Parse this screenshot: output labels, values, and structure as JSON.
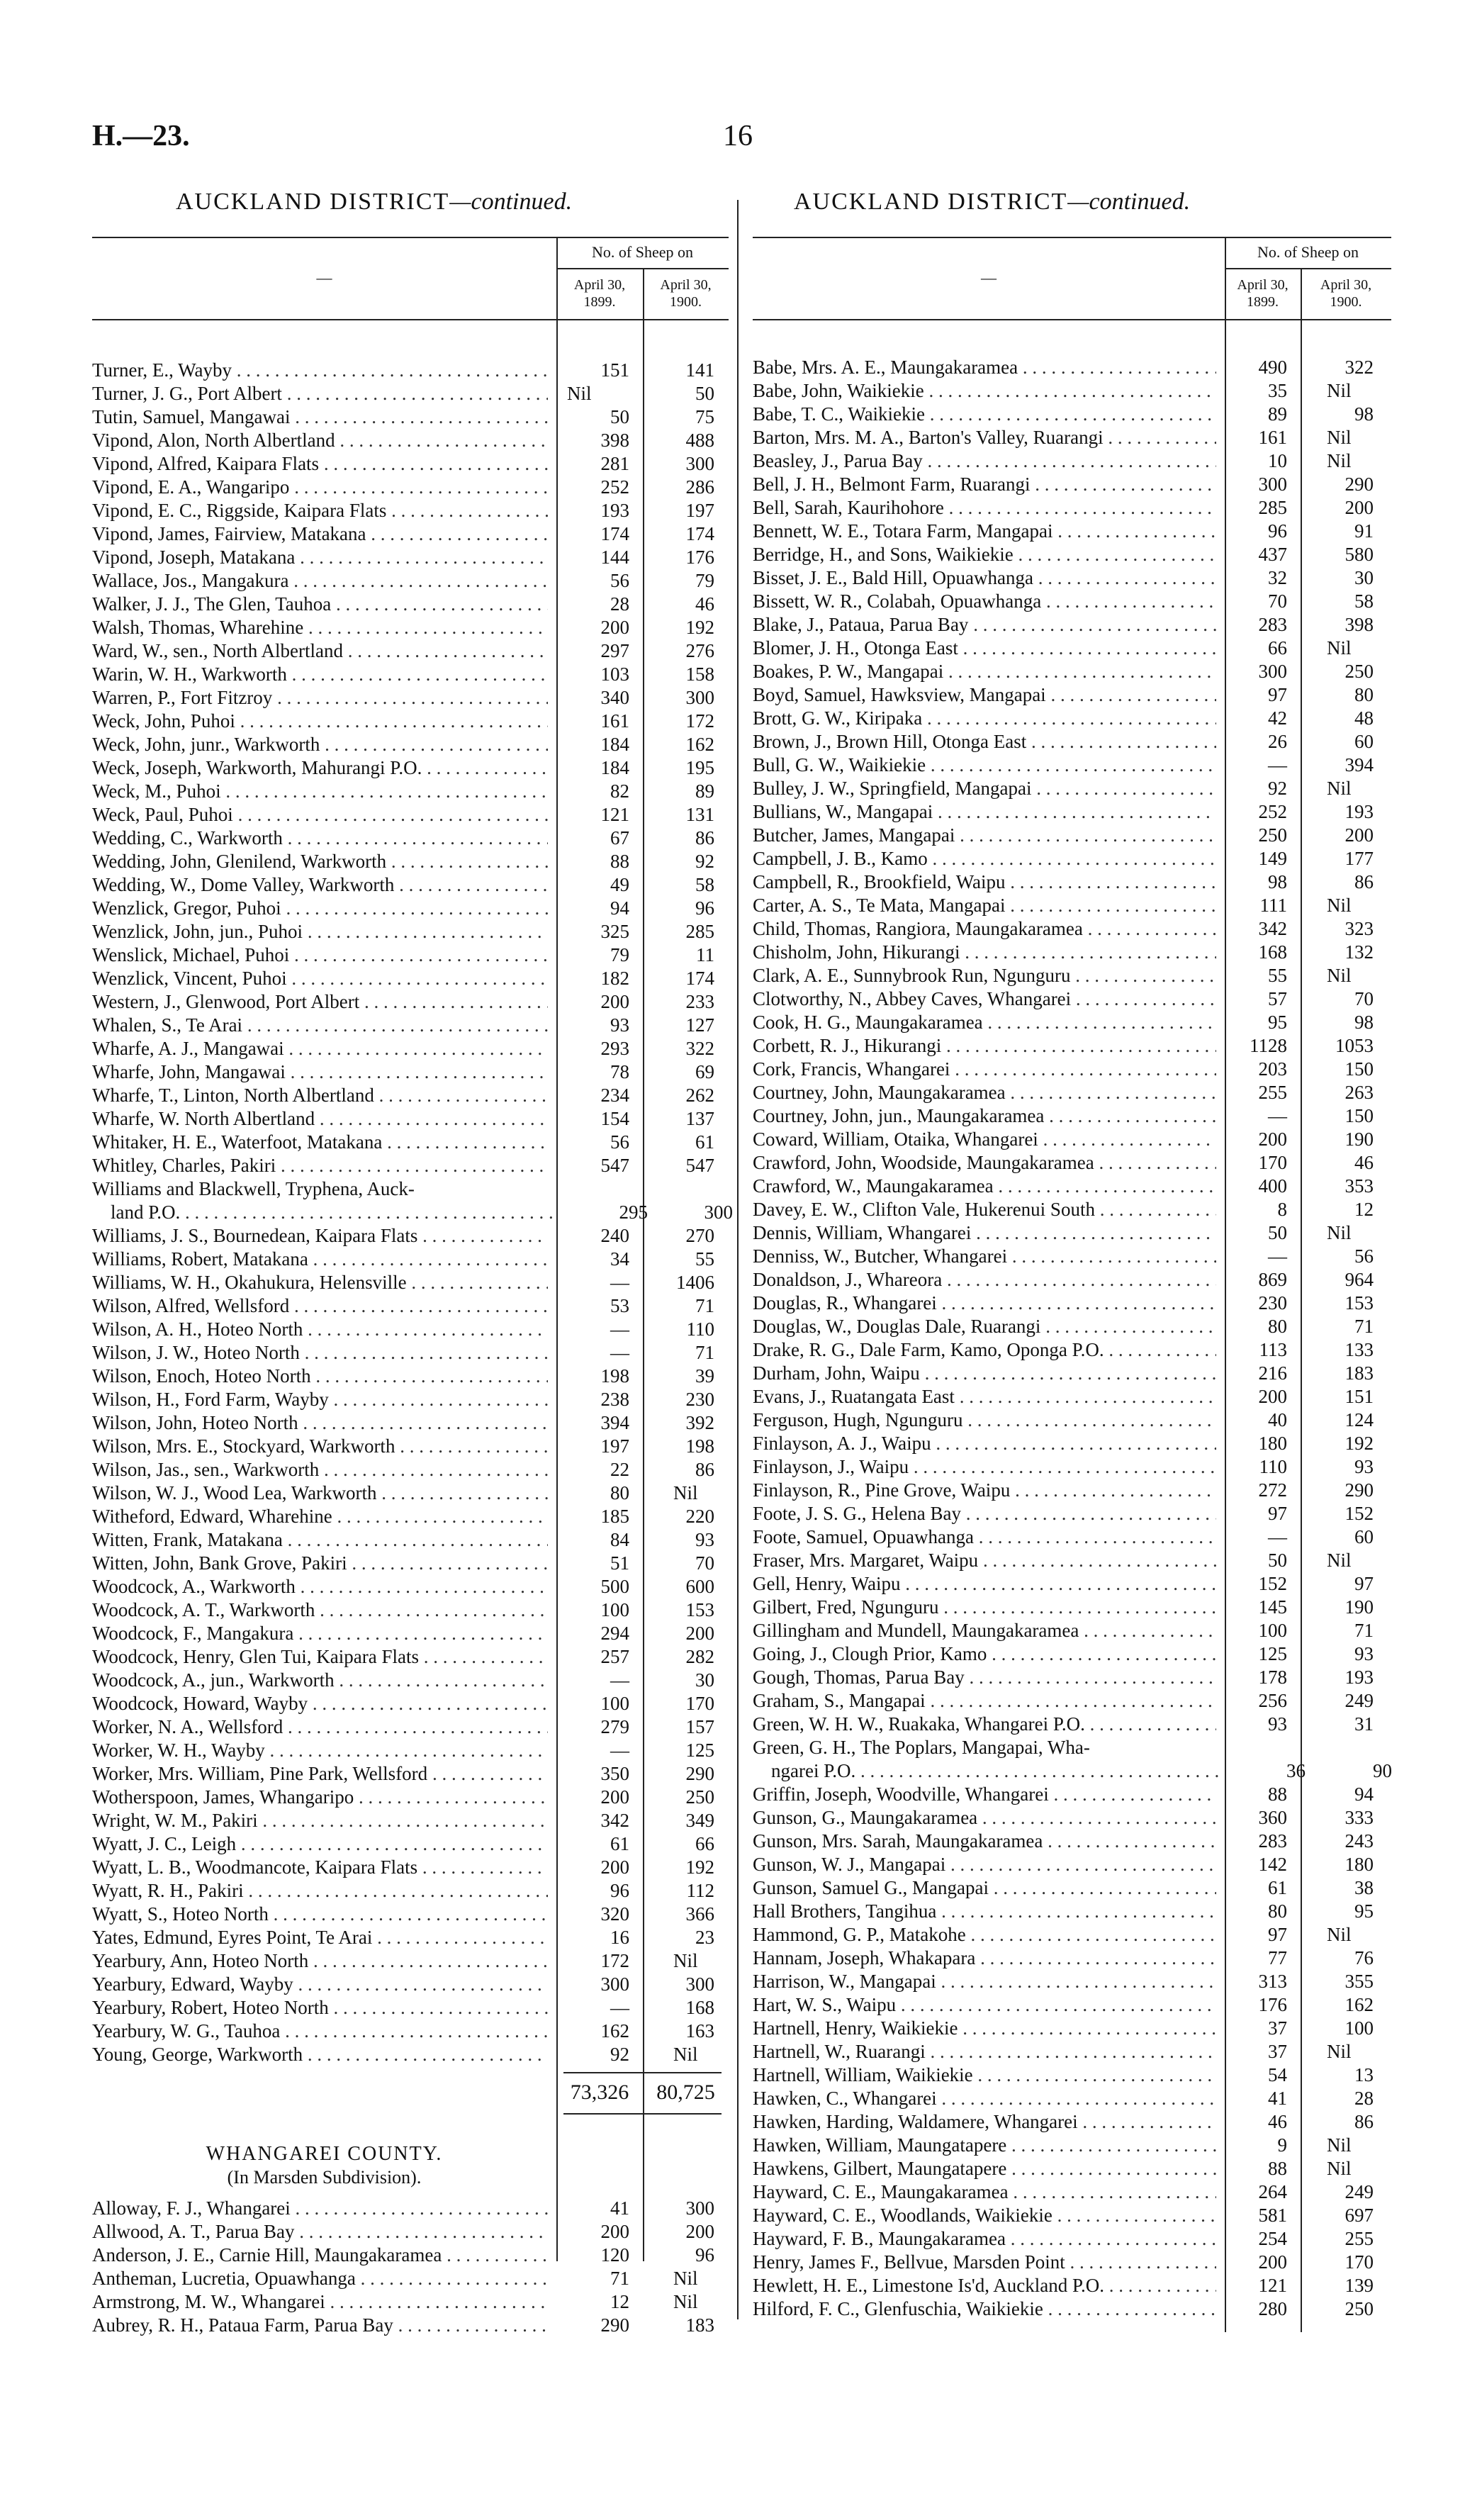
{
  "header": {
    "code": "H.—23.",
    "page": "16"
  },
  "left": {
    "heading": "AUCKLAND DISTRICT",
    "heading_suffix": "—continued.",
    "col_blank": "—",
    "col_group": "No. of Sheep on",
    "col1": [
      "April 30,",
      "1899."
    ],
    "col2": [
      "April 30,",
      "1900."
    ],
    "rows": [
      {
        "name": "Turner, E., Wayby",
        "a": "151",
        "b": "141"
      },
      {
        "name": "Turner, J. G., Port Albert",
        "a": "Nil",
        "b": "50"
      },
      {
        "name": "Tutin, Samuel, Mangawai",
        "a": "50",
        "b": "75"
      },
      {
        "name": "Vipond, Alon, North Albertland",
        "a": "398",
        "b": "488"
      },
      {
        "name": "Vipond, Alfred, Kaipara Flats",
        "a": "281",
        "b": "300"
      },
      {
        "name": "Vipond, E. A., Wangaripo",
        "a": "252",
        "b": "286"
      },
      {
        "name": "Vipond, E. C., Riggside, Kaipara Flats",
        "a": "193",
        "b": "197"
      },
      {
        "name": "Vipond, James, Fairview, Matakana",
        "a": "174",
        "b": "174"
      },
      {
        "name": "Vipond, Joseph, Matakana",
        "a": "144",
        "b": "176"
      },
      {
        "name": "Wallace, Jos., Mangakura",
        "a": "56",
        "b": "79"
      },
      {
        "name": "Walker, J. J., The Glen, Tauhoa",
        "a": "28",
        "b": "46"
      },
      {
        "name": "Walsh, Thomas, Wharehine",
        "a": "200",
        "b": "192"
      },
      {
        "name": "Ward, W., sen., North Albertland",
        "a": "297",
        "b": "276"
      },
      {
        "name": "Warin, W. H., Warkworth",
        "a": "103",
        "b": "158"
      },
      {
        "name": "Warren, P., Fort Fitzroy",
        "a": "340",
        "b": "300"
      },
      {
        "name": "Weck, John, Puhoi",
        "a": "161",
        "b": "172"
      },
      {
        "name": "Weck, John, junr., Warkworth",
        "a": "184",
        "b": "162"
      },
      {
        "name": "Weck, Joseph, Warkworth, Mahurangi P.O.",
        "a": "184",
        "b": "195"
      },
      {
        "name": "Weck, M., Puhoi",
        "a": "82",
        "b": "89"
      },
      {
        "name": "Weck, Paul, Puhoi",
        "a": "121",
        "b": "131"
      },
      {
        "name": "Wedding, C., Warkworth",
        "a": "67",
        "b": "86"
      },
      {
        "name": "Wedding, John, Glenilend, Warkworth",
        "a": "88",
        "b": "92"
      },
      {
        "name": "Wedding, W., Dome Valley, Warkworth",
        "a": "49",
        "b": "58"
      },
      {
        "name": "Wenzlick, Gregor, Puhoi",
        "a": "94",
        "b": "96"
      },
      {
        "name": "Wenzlick, John, jun., Puhoi",
        "a": "325",
        "b": "285"
      },
      {
        "name": "Wenslick, Michael, Puhoi",
        "a": "79",
        "b": "11"
      },
      {
        "name": "Wenzlick, Vincent, Puhoi",
        "a": "182",
        "b": "174"
      },
      {
        "name": "Western, J., Glenwood, Port Albert",
        "a": "200",
        "b": "233"
      },
      {
        "name": "Whalen, S., Te Arai",
        "a": "93",
        "b": "127"
      },
      {
        "name": "Wharfe, A. J., Mangawai",
        "a": "293",
        "b": "322"
      },
      {
        "name": "Wharfe, John, Mangawai",
        "a": "78",
        "b": "69"
      },
      {
        "name": "Wharfe, T., Linton, North Albertland",
        "a": "234",
        "b": "262"
      },
      {
        "name": "Wharfe, W. North Albertland",
        "a": "154",
        "b": "137"
      },
      {
        "name": "Whitaker, H. E., Waterfoot, Matakana",
        "a": "56",
        "b": "61"
      },
      {
        "name": "Whitley, Charles, Pakiri",
        "a": "547",
        "b": "547"
      },
      {
        "name": "Williams and Blackwell, Tryphena, Auck-",
        "name_cont": "land P.O.",
        "a": "295",
        "b": "300"
      },
      {
        "name": "Williams, J. S., Bournedean, Kaipara Flats",
        "a": "240",
        "b": "270"
      },
      {
        "name": "Williams, Robert, Matakana",
        "a": "34",
        "b": "55"
      },
      {
        "name": "Williams, W. H., Okahukura, Helensville",
        "a": "—",
        "b": "1406"
      },
      {
        "name": "Wilson, Alfred, Wellsford",
        "a": "53",
        "b": "71"
      },
      {
        "name": "Wilson, A. H., Hoteo North",
        "a": "—",
        "b": "110"
      },
      {
        "name": "Wilson, J. W., Hoteo North",
        "a": "—",
        "b": "71"
      },
      {
        "name": "Wilson, Enoch, Hoteo North",
        "a": "198",
        "b": "39"
      },
      {
        "name": "Wilson, H., Ford Farm, Wayby",
        "a": "238",
        "b": "230"
      },
      {
        "name": "Wilson, John, Hoteo North",
        "a": "394",
        "b": "392"
      },
      {
        "name": "Wilson, Mrs. E., Stockyard, Warkworth",
        "a": "197",
        "b": "198"
      },
      {
        "name": "Wilson, Jas., sen., Warkworth",
        "a": "22",
        "b": "86"
      },
      {
        "name": "Wilson, W. J., Wood Lea, Warkworth",
        "a": "80",
        "b": "Nil"
      },
      {
        "name": "Witheford, Edward, Wharehine",
        "a": "185",
        "b": "220"
      },
      {
        "name": "Witten, Frank, Matakana",
        "a": "84",
        "b": "93"
      },
      {
        "name": "Witten, John, Bank Grove, Pakiri",
        "a": "51",
        "b": "70"
      },
      {
        "name": "Woodcock, A., Warkworth",
        "a": "500",
        "b": "600"
      },
      {
        "name": "Woodcock, A. T., Warkworth",
        "a": "100",
        "b": "153"
      },
      {
        "name": "Woodcock, F., Mangakura",
        "a": "294",
        "b": "200"
      },
      {
        "name": "Woodcock, Henry, Glen Tui, Kaipara Flats",
        "a": "257",
        "b": "282"
      },
      {
        "name": "Woodcock, A., jun., Warkworth",
        "a": "—",
        "b": "30"
      },
      {
        "name": "Woodcock, Howard, Wayby",
        "a": "100",
        "b": "170"
      },
      {
        "name": "Worker, N. A., Wellsford",
        "a": "279",
        "b": "157"
      },
      {
        "name": "Worker, W. H., Wayby",
        "a": "—",
        "b": "125"
      },
      {
        "name": "Worker, Mrs. William, Pine Park, Wellsford",
        "a": "350",
        "b": "290"
      },
      {
        "name": "Wotherspoon, James, Whangaripo",
        "a": "200",
        "b": "250"
      },
      {
        "name": "Wright, W. M., Pakiri",
        "a": "342",
        "b": "349"
      },
      {
        "name": "Wyatt, J. C., Leigh",
        "a": "61",
        "b": "66"
      },
      {
        "name": "Wyatt, L. B., Woodmancote, Kaipara Flats",
        "a": "200",
        "b": "192"
      },
      {
        "name": "Wyatt, R. H., Pakiri",
        "a": "96",
        "b": "112"
      },
      {
        "name": "Wyatt, S., Hoteo North",
        "a": "320",
        "b": "366"
      },
      {
        "name": "Yates, Edmund, Eyres Point, Te Arai",
        "a": "16",
        "b": "23"
      },
      {
        "name": "Yearbury, Ann, Hoteo North",
        "a": "172",
        "b": "Nil"
      },
      {
        "name": "Yearbury, Edward, Wayby",
        "a": "300",
        "b": "300"
      },
      {
        "name": "Yearbury, Robert, Hoteo North",
        "a": "—",
        "b": "168"
      },
      {
        "name": "Yearbury, W. G., Tauhoa",
        "a": "162",
        "b": "163"
      },
      {
        "name": "Young, George, Warkworth",
        "a": "92",
        "b": "Nil"
      }
    ],
    "total": {
      "a": "73,326",
      "b": "80,725"
    },
    "section": {
      "title": "WHANGAREI COUNTY.",
      "subtitle": "(In Marsden Subdivision)."
    },
    "rows2": [
      {
        "name": "Alloway, F. J., Whangarei",
        "a": "41",
        "b": "300"
      },
      {
        "name": "Allwood, A. T., Parua Bay",
        "a": "200",
        "b": "200"
      },
      {
        "name": "Anderson, J. E., Carnie Hill, Maungakaramea",
        "a": "120",
        "b": "96"
      },
      {
        "name": "Antheman, Lucretia, Opuawhanga",
        "a": "71",
        "b": "Nil"
      },
      {
        "name": "Armstrong, M. W., Whangarei",
        "a": "12",
        "b": "Nil"
      },
      {
        "name": "Aubrey, R. H., Pataua Farm, Parua Bay",
        "a": "290",
        "b": "183"
      }
    ]
  },
  "right": {
    "heading": "AUCKLAND DISTRICT",
    "heading_suffix": "—continued.",
    "col_blank": "—",
    "col_group": "No. of Sheep on",
    "col1": [
      "April 30,",
      "1899."
    ],
    "col2": [
      "April 30,",
      "1900."
    ],
    "rows": [
      {
        "name": "Babe, Mrs. A. E., Maungakaramea",
        "a": "490",
        "b": "322"
      },
      {
        "name": "Babe, John, Waikiekie",
        "a": "35",
        "b": "Nil"
      },
      {
        "name": "Babe, T. C., Waikiekie",
        "a": "89",
        "b": "98"
      },
      {
        "name": "Barton, Mrs. M. A., Barton's Valley, Ruarangi",
        "a": "161",
        "b": "Nil"
      },
      {
        "name": "Beasley, J., Parua Bay",
        "a": "10",
        "b": "Nil"
      },
      {
        "name": "Bell, J. H., Belmont Farm, Ruarangi",
        "a": "300",
        "b": "290"
      },
      {
        "name": "Bell, Sarah, Kaurihohore",
        "a": "285",
        "b": "200"
      },
      {
        "name": "Bennett, W. E., Totara Farm, Mangapai",
        "a": "96",
        "b": "91"
      },
      {
        "name": "Berridge, H., and Sons, Waikiekie",
        "a": "437",
        "b": "580"
      },
      {
        "name": "Bisset, J. E., Bald Hill, Opuawhanga",
        "a": "32",
        "b": "30"
      },
      {
        "name": "Bissett, W. R., Colabah, Opuawhanga",
        "a": "70",
        "b": "58"
      },
      {
        "name": "Blake, J., Pataua, Parua Bay",
        "a": "283",
        "b": "398"
      },
      {
        "name": "Blomer, J. H., Otonga East",
        "a": "66",
        "b": "Nil"
      },
      {
        "name": "Boakes, P. W., Mangapai",
        "a": "300",
        "b": "250"
      },
      {
        "name": "Boyd, Samuel, Hawksview, Mangapai",
        "a": "97",
        "b": "80"
      },
      {
        "name": "Brott, G. W., Kiripaka",
        "a": "42",
        "b": "48"
      },
      {
        "name": "Brown, J., Brown Hill, Otonga East",
        "a": "26",
        "b": "60"
      },
      {
        "name": "Bull, G. W., Waikiekie",
        "a": "—",
        "b": "394"
      },
      {
        "name": "Bulley, J. W., Springfield, Mangapai",
        "a": "92",
        "b": "Nil"
      },
      {
        "name": "Bullians, W., Mangapai",
        "a": "252",
        "b": "193"
      },
      {
        "name": "Butcher, James, Mangapai",
        "a": "250",
        "b": "200"
      },
      {
        "name": "Campbell, J. B., Kamo",
        "a": "149",
        "b": "177"
      },
      {
        "name": "Campbell, R., Brookfield, Waipu",
        "a": "98",
        "b": "86"
      },
      {
        "name": "Carter, A. S., Te Mata, Mangapai",
        "a": "111",
        "b": "Nil"
      },
      {
        "name": "Child, Thomas, Rangiora, Maungakaramea",
        "a": "342",
        "b": "323"
      },
      {
        "name": "Chisholm, John, Hikurangi",
        "a": "168",
        "b": "132"
      },
      {
        "name": "Clark, A. E., Sunnybrook Run, Ngunguru",
        "a": "55",
        "b": "Nil"
      },
      {
        "name": "Clotworthy, N., Abbey Caves, Whangarei",
        "a": "57",
        "b": "70"
      },
      {
        "name": "Cook, H. G., Maungakaramea",
        "a": "95",
        "b": "98"
      },
      {
        "name": "Corbett, R. J., Hikurangi",
        "a": "1128",
        "b": "1053"
      },
      {
        "name": "Cork, Francis, Whangarei",
        "a": "203",
        "b": "150"
      },
      {
        "name": "Courtney, John, Maungakaramea",
        "a": "255",
        "b": "263"
      },
      {
        "name": "Courtney, John, jun., Maungakaramea",
        "a": "—",
        "b": "150"
      },
      {
        "name": "Coward, William, Otaika, Whangarei",
        "a": "200",
        "b": "190"
      },
      {
        "name": "Crawford, John, Woodside, Maungakaramea",
        "a": "170",
        "b": "46"
      },
      {
        "name": "Crawford, W., Maungakaramea",
        "a": "400",
        "b": "353"
      },
      {
        "name": "Davey, E. W., Clifton Vale, Hukerenui South",
        "a": "8",
        "b": "12"
      },
      {
        "name": "Dennis, William, Whangarei",
        "a": "50",
        "b": "Nil"
      },
      {
        "name": "Denniss, W., Butcher, Whangarei",
        "a": "—",
        "b": "56"
      },
      {
        "name": "Donaldson, J., Whareora",
        "a": "869",
        "b": "964"
      },
      {
        "name": "Douglas, R., Whangarei",
        "a": "230",
        "b": "153"
      },
      {
        "name": "Douglas, W., Douglas Dale, Ruarangi",
        "a": "80",
        "b": "71"
      },
      {
        "name": "Drake, R. G., Dale Farm, Kamo, Oponga P.O.",
        "a": "113",
        "b": "133"
      },
      {
        "name": "Durham, John, Waipu",
        "a": "216",
        "b": "183"
      },
      {
        "name": "Evans, J., Ruatangata East",
        "a": "200",
        "b": "151"
      },
      {
        "name": "Ferguson, Hugh, Ngunguru",
        "a": "40",
        "b": "124"
      },
      {
        "name": "Finlayson, A. J., Waipu",
        "a": "180",
        "b": "192"
      },
      {
        "name": "Finlayson, J., Waipu",
        "a": "110",
        "b": "93"
      },
      {
        "name": "Finlayson, R., Pine Grove, Waipu",
        "a": "272",
        "b": "290"
      },
      {
        "name": "Foote, J. S. G., Helena Bay",
        "a": "97",
        "b": "152"
      },
      {
        "name": "Foote, Samuel, Opuawhanga",
        "a": "—",
        "b": "60"
      },
      {
        "name": "Fraser, Mrs. Margaret, Waipu",
        "a": "50",
        "b": "Nil"
      },
      {
        "name": "Gell, Henry, Waipu",
        "a": "152",
        "b": "97"
      },
      {
        "name": "Gilbert, Fred, Ngunguru",
        "a": "145",
        "b": "190"
      },
      {
        "name": "Gillingham and Mundell, Maungakaramea",
        "a": "100",
        "b": "71"
      },
      {
        "name": "Going, J., Clough Prior, Kamo",
        "a": "125",
        "b": "93"
      },
      {
        "name": "Gough, Thomas, Parua Bay",
        "a": "178",
        "b": "193"
      },
      {
        "name": "Graham, S., Mangapai",
        "a": "256",
        "b": "249"
      },
      {
        "name": "Green, W. H. W., Ruakaka, Whangarei P.O.",
        "a": "93",
        "b": "31"
      },
      {
        "name": "Green, G. H., The Poplars, Mangapai, Wha-",
        "name_cont": "ngarei P.O.",
        "a": "36",
        "b": "90"
      },
      {
        "name": "Griffin, Joseph, Woodville, Whangarei",
        "a": "88",
        "b": "94"
      },
      {
        "name": "Gunson, G., Maungakaramea",
        "a": "360",
        "b": "333"
      },
      {
        "name": "Gunson, Mrs. Sarah, Maungakaramea",
        "a": "283",
        "b": "243"
      },
      {
        "name": "Gunson, W. J., Mangapai",
        "a": "142",
        "b": "180"
      },
      {
        "name": "Gunson, Samuel G., Mangapai",
        "a": "61",
        "b": "38"
      },
      {
        "name": "Hall Brothers, Tangihua",
        "a": "80",
        "b": "95"
      },
      {
        "name": "Hammond, G. P., Matakohe",
        "a": "97",
        "b": "Nil"
      },
      {
        "name": "Hannam, Joseph, Whakapara",
        "a": "77",
        "b": "76"
      },
      {
        "name": "Harrison, W., Mangapai",
        "a": "313",
        "b": "355"
      },
      {
        "name": "Hart, W. S., Waipu",
        "a": "176",
        "b": "162"
      },
      {
        "name": "Hartnell, Henry, Waikiekie",
        "a": "37",
        "b": "100"
      },
      {
        "name": "Hartnell, W., Ruarangi",
        "a": "37",
        "b": "Nil"
      },
      {
        "name": "Hartnell, William, Waikiekie",
        "a": "54",
        "b": "13"
      },
      {
        "name": "Hawken, C., Whangarei",
        "a": "41",
        "b": "28"
      },
      {
        "name": "Hawken, Harding, Waldamere, Whangarei",
        "a": "46",
        "b": "86"
      },
      {
        "name": "Hawken, William, Maungatapere",
        "a": "9",
        "b": "Nil"
      },
      {
        "name": "Hawkens, Gilbert, Maungatapere",
        "a": "88",
        "b": "Nil"
      },
      {
        "name": "Hayward, C. E., Maungakaramea",
        "a": "264",
        "b": "249"
      },
      {
        "name": "Hayward, C. E., Woodlands, Waikiekie",
        "a": "581",
        "b": "697"
      },
      {
        "name": "Hayward, F. B., Maungakaramea",
        "a": "254",
        "b": "255"
      },
      {
        "name": "Henry, James F., Bellvue, Marsden Point",
        "a": "200",
        "b": "170"
      },
      {
        "name": "Hewlett, H. E., Limestone Is'd, Auckland P.O.",
        "a": "121",
        "b": "139"
      },
      {
        "name": "Hilford, F. C., Glenfuschia, Waikiekie",
        "a": "280",
        "b": "250"
      }
    ]
  }
}
